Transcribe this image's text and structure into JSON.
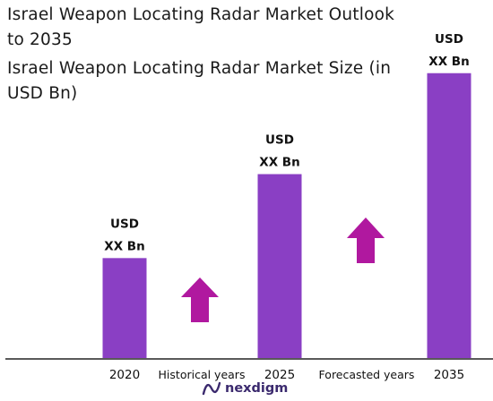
{
  "title": {
    "line1": "Israel Weapon Locating Radar Market Outlook",
    "line2": "to 2035",
    "subtitle_line1": "Israel Weapon Locating Radar Market Size (in",
    "subtitle_line2": "USD Bn)"
  },
  "colors": {
    "bar": "#8a3fc4",
    "arrow": "#b0189f"
  },
  "periods": {
    "historical": "Historical years",
    "forecast": "Forecasted years"
  },
  "logo": {
    "text": "nexdigm",
    "icon": "nexdigm-logo-icon"
  },
  "chart_data": {
    "type": "bar",
    "categories": [
      "2020",
      "2025",
      "2035"
    ],
    "values": [
      1.0,
      1.84,
      2.85
    ],
    "value_labels": [
      [
        "USD",
        "XX Bn"
      ],
      [
        "USD",
        "XX Bn"
      ],
      [
        "USD",
        "XX Bn"
      ]
    ],
    "title": "Israel Weapon Locating Radar Market Size (in USD Bn)",
    "xlabel": "",
    "ylabel": "",
    "ylim": [
      0,
      3
    ],
    "grid": false,
    "legend": "none"
  }
}
